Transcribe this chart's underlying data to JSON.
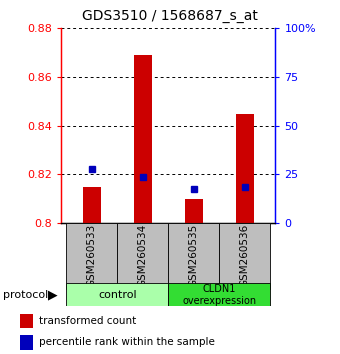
{
  "title": "GDS3510 / 1568687_s_at",
  "samples": [
    "GSM260533",
    "GSM260534",
    "GSM260535",
    "GSM260536"
  ],
  "transformed_counts": [
    0.815,
    0.869,
    0.81,
    0.845
  ],
  "percentile_ranks": [
    0.822,
    0.819,
    0.814,
    0.815
  ],
  "bar_bottom": 0.8,
  "ylim_left": [
    0.8,
    0.88
  ],
  "ylim_right": [
    0,
    100
  ],
  "yticks_left": [
    0.8,
    0.82,
    0.84,
    0.86,
    0.88
  ],
  "ytick_labels_left": [
    "0.8",
    "0.82",
    "0.84",
    "0.86",
    "0.88"
  ],
  "yticks_right": [
    0,
    25,
    50,
    75,
    100
  ],
  "ytick_labels_right": [
    "0",
    "25",
    "50",
    "75",
    "100%"
  ],
  "bar_color_red": "#CC0000",
  "dot_color_blue": "#0000BB",
  "bar_width": 0.35,
  "dot_size": 30,
  "background_labels": "#BEBEBE",
  "x_positions": [
    0,
    1,
    2,
    3
  ],
  "group_label_protocol": "protocol",
  "legend_red": "transformed count",
  "legend_blue": "percentile rank within the sample",
  "control_color": "#AAFFAA",
  "cldn_color": "#33DD33",
  "fig_width": 3.4,
  "fig_height": 3.54,
  "fig_dpi": 100
}
